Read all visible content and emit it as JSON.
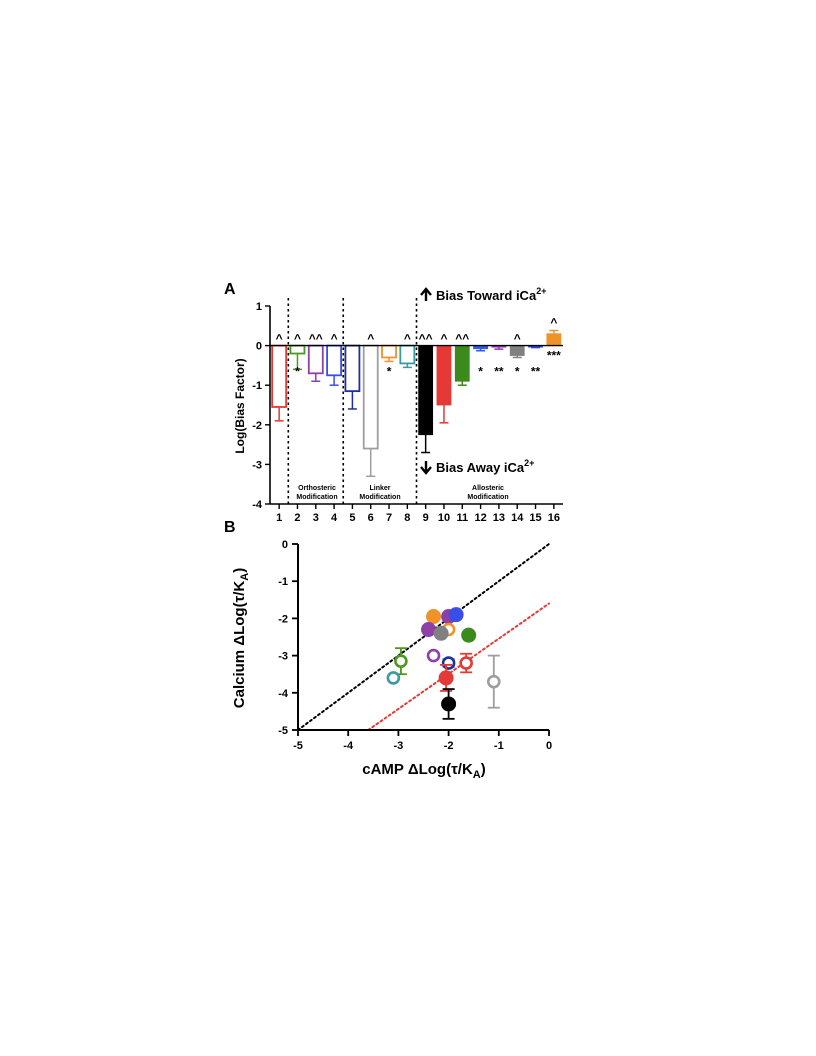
{
  "panelA": {
    "letter": "A",
    "ylabel": "Log(Bias Factor)",
    "yticks": [
      "1",
      "0",
      "-1",
      "-2",
      "-3",
      "-4"
    ],
    "ylim": [
      -4,
      1
    ],
    "bias_toward": "Bias Toward iCa",
    "bias_away": "Bias Away iCa",
    "superscript": "2+",
    "regions": [
      {
        "line1": "Orthosteric",
        "line2": "Modification"
      },
      {
        "line1": "Linker",
        "line2": "Modification"
      },
      {
        "line1": "Allosteric",
        "line2": "Modification"
      }
    ]
  },
  "panelB": {
    "letter": "B",
    "ylabel": "Calcium ΔLog(τ/K",
    "xlabel": "cAMP ΔLog(τ/K",
    "subscript": "A",
    "close": ")",
    "xticks": [
      "-5",
      "-4",
      "-3",
      "-2",
      "-1",
      "0"
    ],
    "yticks": [
      "0",
      "-1",
      "-2",
      "-3",
      "-4",
      "-5"
    ]
  },
  "chart_data": [
    {
      "type": "bar",
      "categories": [
        "1",
        "2",
        "3",
        "4",
        "5",
        "6",
        "7",
        "8",
        "9",
        "10",
        "11",
        "12",
        "13",
        "14",
        "15",
        "16"
      ],
      "values": [
        -1.55,
        -0.2,
        -0.7,
        -0.75,
        -1.15,
        -2.6,
        -0.3,
        -0.45,
        -2.25,
        -1.5,
        -0.9,
        -0.08,
        -0.04,
        -0.25,
        -0.03,
        0.3
      ],
      "errors": [
        0.35,
        0.4,
        0.2,
        0.25,
        0.45,
        0.7,
        0.1,
        0.1,
        0.45,
        0.45,
        0.1,
        0.05,
        0.05,
        0.05,
        0.02,
        0.08
      ],
      "colors": [
        "#e53935",
        "#4a9a1c",
        "#8e3fa8",
        "#3a4ee8",
        "#1f2fa0",
        "#9e9e9e",
        "#f0922a",
        "#3a9aa0",
        "#000000",
        "#e53935",
        "#3b8a1c",
        "#2f5be8",
        "#8e3fa8",
        "#808080",
        "#2f3fe0",
        "#f0922a"
      ],
      "filled": [
        false,
        false,
        false,
        false,
        false,
        false,
        false,
        false,
        true,
        true,
        true,
        true,
        true,
        true,
        true,
        true
      ],
      "top_marks": [
        "^",
        "^",
        "^^",
        "^",
        "",
        "^",
        "",
        "^",
        "^^",
        "^",
        "^^",
        "",
        "",
        "^",
        "",
        "^"
      ],
      "bottom_marks": [
        "",
        "*",
        "",
        "",
        "",
        "",
        "*",
        "",
        "",
        "",
        "",
        "*",
        "**",
        "*",
        "**",
        "***"
      ],
      "ylim": [
        -4,
        1
      ],
      "separators_after": [
        "1",
        "4",
        "8"
      ]
    },
    {
      "type": "scatter",
      "xlim": [
        -5,
        0
      ],
      "ylim": [
        -5,
        0
      ],
      "points": [
        {
          "x": -2.3,
          "y": -1.95,
          "color": "#f0922a",
          "filled": true
        },
        {
          "x": -2.0,
          "y": -1.95,
          "color": "#8e3fa8",
          "filled": true
        },
        {
          "x": -1.85,
          "y": -1.9,
          "color": "#3a4ee8",
          "filled": true
        },
        {
          "x": -2.0,
          "y": -2.3,
          "color": "#f0922a",
          "filled": false
        },
        {
          "x": -2.4,
          "y": -2.3,
          "color": "#8e3fa8",
          "filled": true
        },
        {
          "x": -2.15,
          "y": -2.4,
          "color": "#808080",
          "filled": true
        },
        {
          "x": -1.6,
          "y": -2.45,
          "color": "#3b8a1c",
          "filled": true
        },
        {
          "x": -2.3,
          "y": -3.0,
          "color": "#8e3fa8",
          "filled": false
        },
        {
          "x": -2.0,
          "y": -3.2,
          "color": "#1f2fa0",
          "filled": false
        },
        {
          "x": -1.65,
          "y": -3.2,
          "color": "#e53935",
          "filled": false
        },
        {
          "x": -2.95,
          "y": -3.15,
          "color": "#4a9a1c",
          "filled": false
        },
        {
          "x": -3.1,
          "y": -3.6,
          "color": "#3a9aa0",
          "filled": false
        },
        {
          "x": -2.05,
          "y": -3.6,
          "color": "#e53935",
          "filled": true
        },
        {
          "x": -1.1,
          "y": -3.7,
          "color": "#9e9e9e",
          "filled": false
        },
        {
          "x": -2.0,
          "y": -4.3,
          "color": "#000000",
          "filled": true
        }
      ],
      "errors_y": [
        0,
        0,
        0,
        0,
        0,
        0,
        0,
        0,
        0.1,
        0.25,
        0.35,
        0,
        0.35,
        0.7,
        0.4
      ],
      "lines": [
        {
          "from": [
            -5,
            -5
          ],
          "to": [
            0,
            0
          ],
          "color": "#000000",
          "style": "dotted"
        },
        {
          "from": [
            -3.6,
            -5
          ],
          "to": [
            0,
            -1.6
          ],
          "color": "#e53935",
          "style": "dotted"
        }
      ]
    }
  ]
}
